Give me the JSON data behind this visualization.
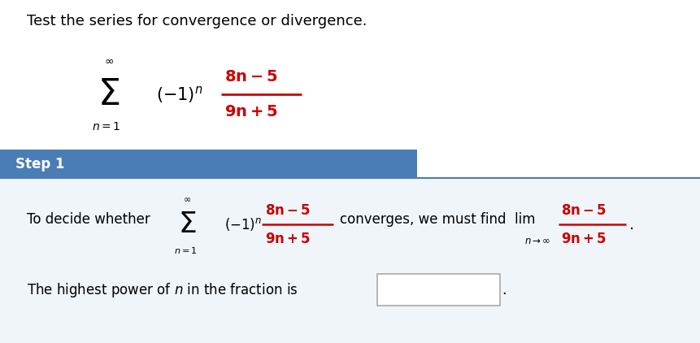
{
  "bg_color": "#ffffff",
  "title_text": "Test the series for convergence or divergence.",
  "title_color": "#000000",
  "title_fontsize": 13,
  "step_bar_color": "#4a7db5",
  "step_bar_width": 0.595,
  "step_text": "Step 1",
  "step_text_color": "#ffffff",
  "step_fontsize": 12,
  "divider_line_color": "#4a7db5",
  "red_color": "#cc0000",
  "black_color": "#000000",
  "bottom_bg_color": "#f0f5fa"
}
